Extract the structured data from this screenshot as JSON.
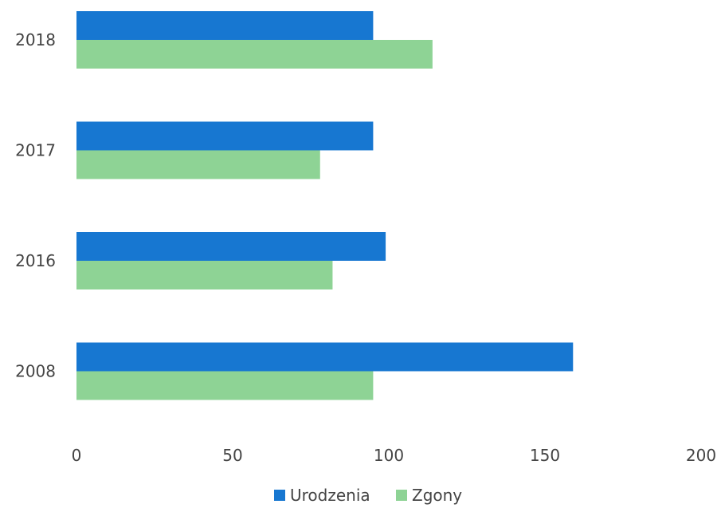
{
  "chart_data": {
    "type": "bar",
    "orientation": "horizontal",
    "categories": [
      "2018",
      "2017",
      "2016",
      "2008"
    ],
    "series": [
      {
        "name": "Urodzenia",
        "color": "#1777D1",
        "values": [
          95,
          95,
          99,
          159
        ]
      },
      {
        "name": "Zgony",
        "color": "#8ED395",
        "values": [
          114,
          78,
          82,
          95
        ]
      }
    ],
    "x_ticks": [
      "0",
      "50",
      "100",
      "150",
      "200"
    ],
    "xlim": [
      0,
      200
    ],
    "grid": false,
    "legend_position": "bottom-center"
  }
}
